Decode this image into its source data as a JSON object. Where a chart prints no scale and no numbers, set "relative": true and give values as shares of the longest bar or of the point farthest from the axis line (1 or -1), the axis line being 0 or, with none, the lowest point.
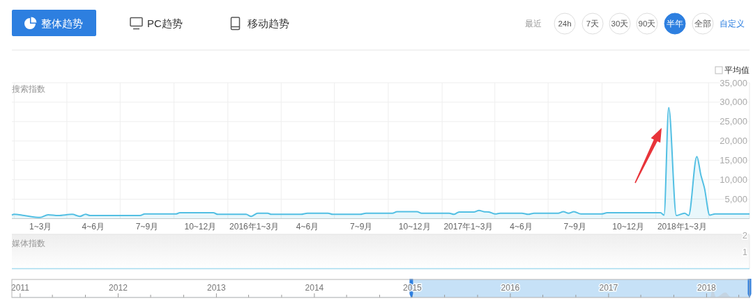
{
  "chart_data": [
    {
      "type": "other",
      "annotations": [
        "整体趋势",
        "PC趋势",
        "移动趋势",
        "最近",
        "24h",
        "7天",
        "30天",
        "90天",
        "半年",
        "全部",
        "自定义",
        "平均值"
      ]
    },
    {
      "type": "area",
      "ylabel": "搜索指数",
      "x": [
        "2014-12-28",
        "2015-01-01",
        "2015-01-18",
        "2015-02-14",
        "2015-02-28",
        "2015-03-17",
        "2015-04-10",
        "2015-04-23",
        "2015-05-03",
        "2015-05-11",
        "2015-08-04",
        "2015-08-12",
        "2015-10-04",
        "2015-10-11",
        "2015-12-07",
        "2015-12-15",
        "2016-02-01",
        "2016-02-10",
        "2016-02-21",
        "2016-03-09",
        "2016-03-15",
        "2016-05-05",
        "2016-05-16",
        "2016-06-20",
        "2016-06-28",
        "2016-08-14",
        "2016-08-24",
        "2016-10-08",
        "2016-10-16",
        "2016-11-19",
        "2016-11-27",
        "2017-01-13",
        "2017-01-21",
        "2017-01-30",
        "2017-02-24",
        "2017-03-05",
        "2017-03-13",
        "2017-03-22",
        "2017-04-02",
        "2017-04-10",
        "2017-05-17",
        "2017-05-28",
        "2017-06-07",
        "2017-07-18",
        "2017-07-27",
        "2017-08-05",
        "2017-08-14",
        "2017-08-26",
        "2017-09-30",
        "2017-10-10",
        "2018-01-09",
        "2018-01-15",
        "2018-01-23",
        "2018-02-05",
        "2018-02-19",
        "2018-02-26",
        "2018-03-12",
        "2018-03-19",
        "2018-03-25",
        "2018-04-03",
        "2018-04-12",
        "2018-06-10"
      ],
      "series": [
        {
          "color": "#52bfe3",
          "values": [
            900,
            1100,
            800,
            300,
            1000,
            800,
            1100,
            600,
            1100,
            800,
            800,
            1200,
            1200,
            1500,
            1500,
            1100,
            1100,
            600,
            1400,
            1400,
            1100,
            1100,
            1400,
            1400,
            1100,
            1100,
            1400,
            1400,
            1800,
            1800,
            1400,
            1400,
            1100,
            1700,
            1700,
            2100,
            1800,
            1700,
            1200,
            1400,
            1400,
            1100,
            1400,
            1400,
            1800,
            1400,
            1800,
            1200,
            1200,
            1500,
            1500,
            900,
            28600,
            800,
            1400,
            800,
            16000,
            11200,
            7900,
            900,
            1200,
            1200
          ]
        }
      ],
      "xlim": [
        "2014-12-28",
        "2018-06-10"
      ],
      "xticks": [
        {
          "value": "2015-01-01",
          "label": null
        },
        {
          "value": "2015-02-15",
          "label": "1~3月"
        },
        {
          "value": "2015-04-01",
          "label": null
        },
        {
          "value": "2015-05-16",
          "label": "4~6月"
        },
        {
          "value": "2015-07-01",
          "label": null
        },
        {
          "value": "2015-08-16",
          "label": "7~9月"
        },
        {
          "value": "2015-10-01",
          "label": null
        },
        {
          "value": "2015-11-15",
          "label": "10~12月"
        },
        {
          "value": "2016-01-01",
          "label": null
        },
        {
          "value": "2016-02-15",
          "label": "2016年1~3月"
        },
        {
          "value": "2016-04-01",
          "label": null
        },
        {
          "value": "2016-05-16",
          "label": "4~6月"
        },
        {
          "value": "2016-07-01",
          "label": null
        },
        {
          "value": "2016-08-16",
          "label": "7~9月"
        },
        {
          "value": "2016-10-01",
          "label": null
        },
        {
          "value": "2016-11-15",
          "label": "10~12月"
        },
        {
          "value": "2017-01-01",
          "label": null
        },
        {
          "value": "2017-02-15",
          "label": "2017年1~3月"
        },
        {
          "value": "2017-04-01",
          "label": null
        },
        {
          "value": "2017-05-16",
          "label": "4~6月"
        },
        {
          "value": "2017-07-01",
          "label": null
        },
        {
          "value": "2017-08-16",
          "label": "7~9月"
        },
        {
          "value": "2017-10-01",
          "label": null
        },
        {
          "value": "2017-11-15",
          "label": "10~12月"
        },
        {
          "value": "2018-01-01",
          "label": null
        },
        {
          "value": "2018-02-15",
          "label": "2018年1~3月"
        },
        {
          "value": "2018-04-01",
          "label": null
        }
      ],
      "ylim": [
        0,
        35000
      ],
      "yticks": [
        {
          "value": 5000,
          "label": "5,000"
        },
        {
          "value": 10000,
          "label": "10,000"
        },
        {
          "value": 15000,
          "label": "15,000"
        },
        {
          "value": 20000,
          "label": "20,000"
        },
        {
          "value": 25000,
          "label": "25,000"
        },
        {
          "value": 30000,
          "label": "30,000"
        },
        {
          "value": 35000,
          "label": "35,000"
        }
      ],
      "grid": true
    },
    {
      "type": "line",
      "ylabel": "媒体指数",
      "x": [
        "2014-12-28",
        "2018-06-10"
      ],
      "series": [
        {
          "color": "#a6dcef",
          "values": [
            0,
            0
          ]
        }
      ],
      "xlim": [
        "2014-12-28",
        "2018-06-10"
      ],
      "ylim": [
        0,
        2
      ],
      "yticks": [
        1,
        2
      ],
      "tick_labels": "y"
    },
    {
      "type": "area",
      "relative": true,
      "x": [
        "2010-12-01",
        "2017-12-31",
        "2018-01-15",
        "2018-01-23",
        "2018-02-05",
        "2018-03-12",
        "2018-04-03",
        "2018-06-10"
      ],
      "series": [
        {
          "color": "#c3ced9",
          "values": [
            0.05,
            0.05,
            0.03,
            1,
            0.03,
            0.56,
            0.03,
            0.04
          ]
        }
      ],
      "xlim": [
        "2010-12-01",
        "2018-06-10"
      ],
      "xticks": [
        {
          "value": "2011-01-01",
          "label": "2011"
        },
        {
          "value": "2011-05-01",
          "label": null
        },
        {
          "value": "2011-09-01",
          "label": null
        },
        {
          "value": "2012-01-01",
          "label": "2012"
        },
        {
          "value": "2012-05-01",
          "label": null
        },
        {
          "value": "2012-09-01",
          "label": null
        },
        {
          "value": "2013-01-01",
          "label": "2013"
        },
        {
          "value": "2013-05-01",
          "label": null
        },
        {
          "value": "2013-09-01",
          "label": null
        },
        {
          "value": "2014-01-01",
          "label": "2014"
        },
        {
          "value": "2014-05-01",
          "label": null
        },
        {
          "value": "2014-09-01",
          "label": null
        },
        {
          "value": "2015-01-01",
          "label": "2015"
        },
        {
          "value": "2015-05-01",
          "label": null
        },
        {
          "value": "2015-09-01",
          "label": null
        },
        {
          "value": "2016-01-01",
          "label": "2016"
        },
        {
          "value": "2016-05-01",
          "label": null
        },
        {
          "value": "2016-09-01",
          "label": null
        },
        {
          "value": "2017-01-01",
          "label": "2017"
        },
        {
          "value": "2017-05-01",
          "label": null
        },
        {
          "value": "2017-09-01",
          "label": null
        },
        {
          "value": "2018-01-01",
          "label": "2018"
        },
        {
          "value": "2018-05-01",
          "label": null
        }
      ],
      "bands": [
        {
          "axis": "x",
          "from": "2014-12-28",
          "to": "2018-06-10",
          "color": "#c6e1f7"
        }
      ]
    }
  ]
}
